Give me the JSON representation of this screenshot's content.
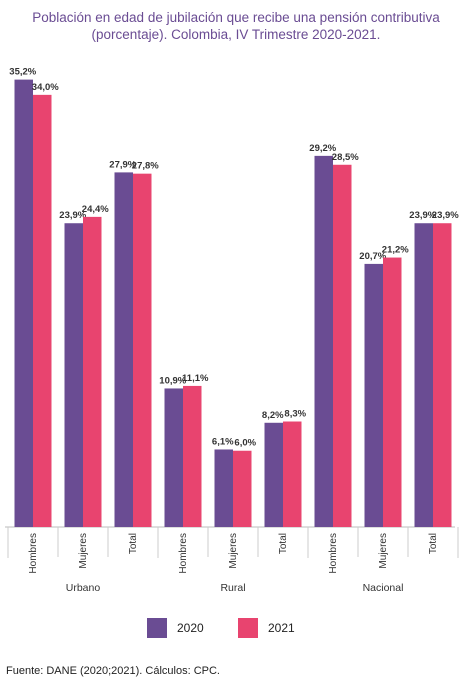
{
  "chart_data": {
    "type": "bar",
    "title": "Población en edad de jubilación que recibe una pensión contributiva (porcentaje). Colombia, IV Trimestre 2020-2021.",
    "groups": [
      {
        "label": "Urbano",
        "categories": [
          "Hombres",
          "Mujeres",
          "Total"
        ]
      },
      {
        "label": "Rural",
        "categories": [
          "Hombres",
          "Mujeres",
          "Total"
        ]
      },
      {
        "label": "Nacional",
        "categories": [
          "Hombres",
          "Mujeres",
          "Total"
        ]
      }
    ],
    "series": [
      {
        "name": "2020",
        "color": "#6a4c93",
        "values": [
          35.2,
          23.9,
          27.9,
          10.9,
          6.1,
          8.2,
          29.2,
          20.7,
          23.9
        ],
        "labels": [
          "35,2%",
          "23,9%",
          "27,9%",
          "10,9%",
          "6,1%",
          "8,2%",
          "29,2%",
          "20,7%",
          "23,9%"
        ]
      },
      {
        "name": "2021",
        "color": "#e8446f",
        "values": [
          34.0,
          24.4,
          27.8,
          11.1,
          6.0,
          8.3,
          28.5,
          21.2,
          23.9
        ],
        "labels": [
          "34,0%",
          "24,4%",
          "27,8%",
          "11,1%",
          "6,0%",
          "8,3%",
          "28,5%",
          "21,2%",
          "23,9%"
        ]
      }
    ],
    "ylim": [
      0,
      36
    ],
    "grid": false,
    "legend_position": "bottom"
  },
  "source": "Fuente: DANE (2020;2021). Cálculos: CPC."
}
